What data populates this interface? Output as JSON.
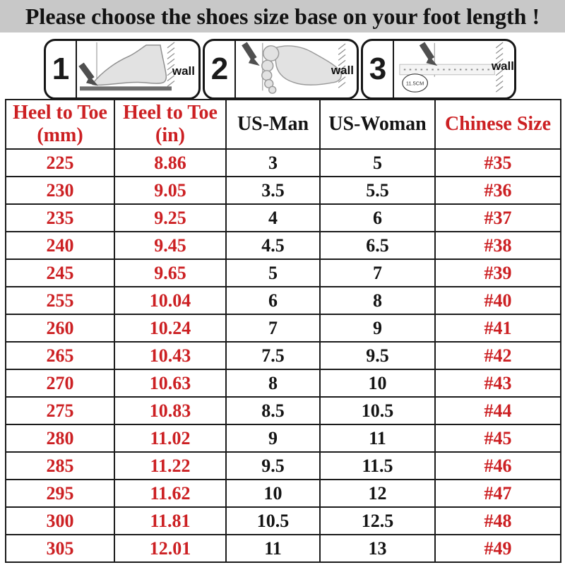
{
  "title": "Please choose the shoes size base on your foot length !",
  "colors": {
    "red": "#cc2023",
    "black": "#141414",
    "title_bg": "#c8c8c8",
    "border": "#1b1b1b"
  },
  "steps": [
    {
      "number": "1",
      "wall_label": "wall"
    },
    {
      "number": "2",
      "wall_label": "wall"
    },
    {
      "number": "3",
      "wall_label": "wall",
      "ruler_label": "11.5CM"
    }
  ],
  "size_table": {
    "headers": [
      {
        "lines": [
          "Heel to Toe",
          "(mm)"
        ],
        "color": "red"
      },
      {
        "lines": [
          "Heel to Toe",
          "(in)"
        ],
        "color": "red"
      },
      {
        "lines": [
          "US-Man"
        ],
        "color": "black"
      },
      {
        "lines": [
          "US-Woman"
        ],
        "color": "black"
      },
      {
        "lines": [
          "Chinese Size"
        ],
        "color": "red"
      }
    ],
    "column_colors": [
      "red",
      "red",
      "black",
      "black",
      "red"
    ],
    "rows": [
      [
        "225",
        "8.86",
        "3",
        "5",
        "#35"
      ],
      [
        "230",
        "9.05",
        "3.5",
        "5.5",
        "#36"
      ],
      [
        "235",
        "9.25",
        "4",
        "6",
        "#37"
      ],
      [
        "240",
        "9.45",
        "4.5",
        "6.5",
        "#38"
      ],
      [
        "245",
        "9.65",
        "5",
        "7",
        "#39"
      ],
      [
        "255",
        "10.04",
        "6",
        "8",
        "#40"
      ],
      [
        "260",
        "10.24",
        "7",
        "9",
        "#41"
      ],
      [
        "265",
        "10.43",
        "7.5",
        "9.5",
        "#42"
      ],
      [
        "270",
        "10.63",
        "8",
        "10",
        "#43"
      ],
      [
        "275",
        "10.83",
        "8.5",
        "10.5",
        "#44"
      ],
      [
        "280",
        "11.02",
        "9",
        "11",
        "#45"
      ],
      [
        "285",
        "11.22",
        "9.5",
        "11.5",
        "#46"
      ],
      [
        "295",
        "11.62",
        "10",
        "12",
        "#47"
      ],
      [
        "300",
        "11.81",
        "10.5",
        "12.5",
        "#48"
      ],
      [
        "305",
        "12.01",
        "11",
        "13",
        "#49"
      ]
    ]
  }
}
